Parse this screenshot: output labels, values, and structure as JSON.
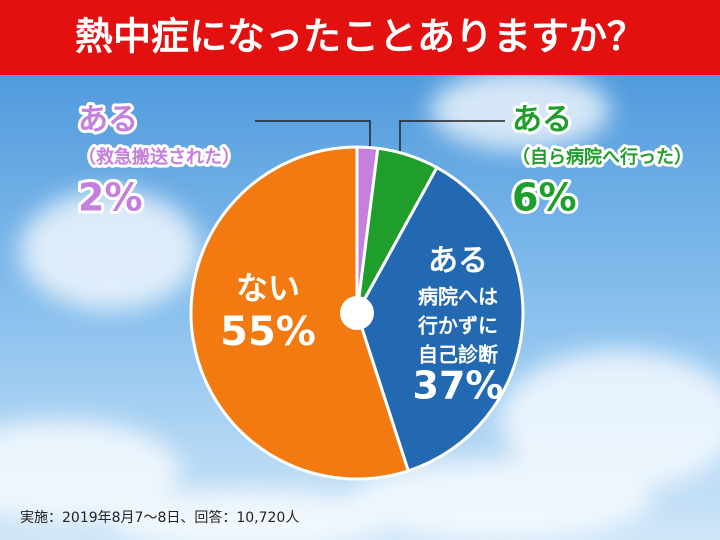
{
  "chart_data": {
    "type": "pie",
    "title": "熱中症になったことありますか？",
    "categories": [
      "ある",
      "ある",
      "ある",
      "ない"
    ],
    "details": [
      [
        "（救急搬送された）"
      ],
      [
        "（自ら病院へ行った）"
      ],
      [
        "病院へは",
        "行かずに",
        "自己診断"
      ],
      null
    ],
    "values": [
      2,
      6,
      37,
      55
    ],
    "value_labels": [
      "2%",
      "6%",
      "37%",
      "55%"
    ],
    "colors": [
      "#c57fdc",
      "#1f9e2c",
      "#2269b2",
      "#f27a10"
    ],
    "footnote": "実施：2019年8月7～8日、回答：10,720人"
  }
}
